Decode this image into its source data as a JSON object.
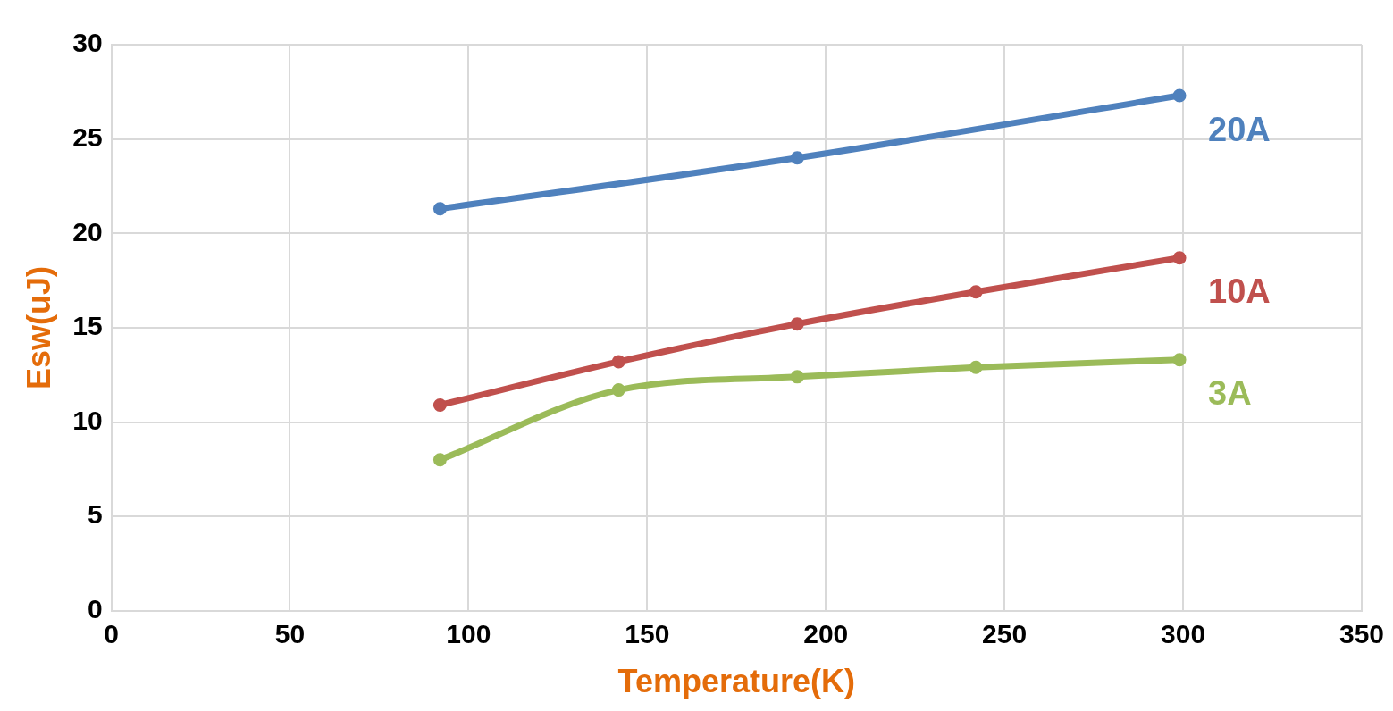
{
  "chart_data": {
    "type": "line",
    "xlabel": "Temperature(K)",
    "ylabel": "Esw(uJ)",
    "xlim": [
      0,
      350
    ],
    "xticks": [
      0,
      50,
      100,
      150,
      200,
      250,
      300,
      350
    ],
    "ylim": [
      0,
      30
    ],
    "yticks": [
      0,
      5,
      10,
      15,
      20,
      25,
      30
    ],
    "grid": true,
    "marker": "circle",
    "line_style": "solid",
    "legend": false,
    "series": [
      {
        "name": "20A",
        "color": "#4f81bd",
        "x": [
          92,
          192,
          299
        ],
        "values": [
          21.3,
          24.0,
          27.3
        ]
      },
      {
        "name": "10A",
        "color": "#c0504d",
        "x": [
          92,
          142,
          192,
          242,
          299
        ],
        "values": [
          10.9,
          13.2,
          15.2,
          16.9,
          18.7
        ]
      },
      {
        "name": "3A",
        "color": "#9bbb59",
        "x": [
          92,
          142,
          192,
          242,
          299
        ],
        "values": [
          8.0,
          11.7,
          12.4,
          12.9,
          13.3
        ]
      }
    ]
  }
}
